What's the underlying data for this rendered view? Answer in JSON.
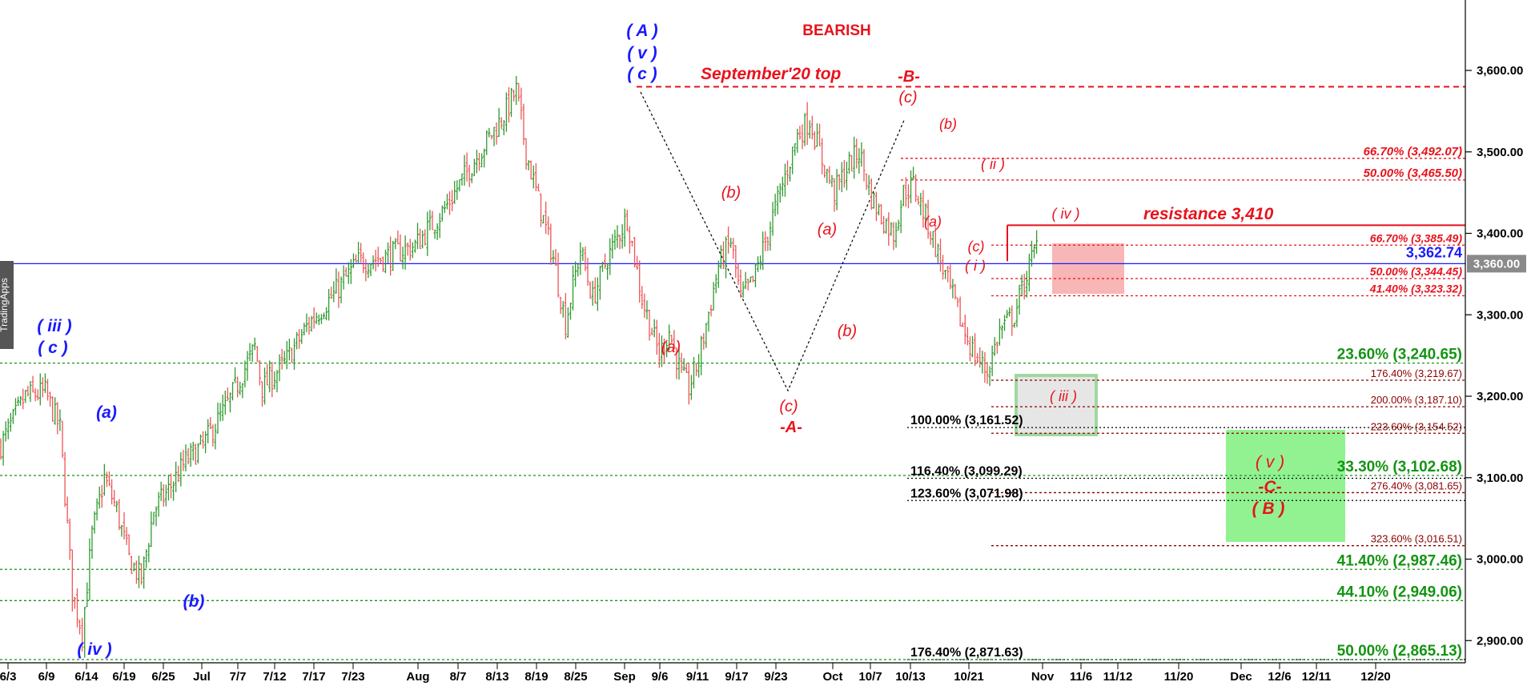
{
  "watermark": "TradingApps",
  "chart_data": {
    "type": "candlestick",
    "title": "BEARISH",
    "ylim": [
      2860,
      3700
    ],
    "y_ticks": [
      "3,600.00",
      "3,500.00",
      "3,400.00",
      "3,300.00",
      "3,200.00",
      "3,100.00",
      "3,000.00",
      "2,900.00"
    ],
    "y_tick_values": [
      3600,
      3500,
      3400,
      3300,
      3200,
      3100,
      3000,
      2900
    ],
    "x_ticks": [
      "6/3",
      "6/9",
      "6/14",
      "6/19",
      "6/25",
      "Jul",
      "7/7",
      "7/12",
      "7/17",
      "7/23",
      "Aug",
      "8/7",
      "8/13",
      "8/19",
      "8/25",
      "Sep",
      "9/6",
      "9/11",
      "9/17",
      "9/23",
      "Oct",
      "10/7",
      "10/13",
      "10/21",
      "Nov",
      "11/6",
      "11/12",
      "11/20",
      "Dec",
      "12/6",
      "12/11",
      "12/20"
    ],
    "current_price": {
      "value": 3362.74,
      "label": "3,362.74",
      "axis_label": "3,360.00",
      "color": "#1a1aff"
    },
    "price_path": [
      [
        0,
        3140
      ],
      [
        10,
        3200
      ],
      [
        18,
        3205
      ],
      [
        24,
        3160
      ],
      [
        29,
        2960
      ],
      [
        33,
        2910
      ],
      [
        37,
        3030
      ],
      [
        42,
        3100
      ],
      [
        47,
        3060
      ],
      [
        52,
        3000
      ],
      [
        57,
        2975
      ],
      [
        62,
        3060
      ],
      [
        67,
        3080
      ],
      [
        75,
        3120
      ],
      [
        82,
        3140
      ],
      [
        92,
        3190
      ],
      [
        103,
        3260
      ],
      [
        106,
        3210
      ],
      [
        115,
        3240
      ],
      [
        125,
        3290
      ],
      [
        135,
        3325
      ],
      [
        145,
        3365
      ],
      [
        155,
        3370
      ],
      [
        168,
        3385
      ],
      [
        180,
        3430
      ],
      [
        192,
        3490
      ],
      [
        203,
        3540
      ],
      [
        209,
        3575
      ],
      [
        213,
        3500
      ],
      [
        218,
        3440
      ],
      [
        224,
        3370
      ],
      [
        229,
        3290
      ],
      [
        235,
        3380
      ],
      [
        240,
        3320
      ],
      [
        246,
        3370
      ],
      [
        254,
        3420
      ],
      [
        260,
        3320
      ],
      [
        267,
        3250
      ],
      [
        271,
        3280
      ],
      [
        276,
        3225
      ],
      [
        279,
        3210
      ],
      [
        283,
        3245
      ],
      [
        291,
        3360
      ],
      [
        296,
        3390
      ],
      [
        300,
        3320
      ],
      [
        305,
        3340
      ],
      [
        311,
        3400
      ],
      [
        317,
        3460
      ],
      [
        323,
        3520
      ],
      [
        328,
        3540
      ],
      [
        333,
        3490
      ],
      [
        338,
        3450
      ],
      [
        343,
        3480
      ],
      [
        348,
        3500
      ],
      [
        353,
        3445
      ],
      [
        357,
        3420
      ],
      [
        362,
        3400
      ],
      [
        366,
        3450
      ],
      [
        370,
        3460
      ],
      [
        375,
        3420
      ],
      [
        380,
        3375
      ],
      [
        385,
        3330
      ],
      [
        390,
        3285
      ],
      [
        395,
        3250
      ],
      [
        400,
        3230
      ],
      [
        405,
        3280
      ],
      [
        411,
        3300
      ],
      [
        416,
        3350
      ],
      [
        420,
        3385
      ]
    ],
    "fibonacci_levels": [
      {
        "label": "66.70% (3,492.07)",
        "value": 3492.07,
        "style": "red"
      },
      {
        "label": "50.00% (3,465.50)",
        "value": 3465.5,
        "style": "red"
      },
      {
        "label": "66.70% (3,385.49)",
        "value": 3385.49,
        "style": "red-small"
      },
      {
        "label": "50.00% (3,344.45)",
        "value": 3344.45,
        "style": "red-small"
      },
      {
        "label": "41.40% (3,323.32)",
        "value": 3323.32,
        "style": "red-small"
      },
      {
        "label": "23.60% (3,240.65)",
        "value": 3240.65,
        "style": "green"
      },
      {
        "label": "176.40% (3,219.67)",
        "value": 3219.67,
        "style": "dark"
      },
      {
        "label": "200.00% (3,187.10)",
        "value": 3187.1,
        "style": "dark"
      },
      {
        "label": "100.00% (3,161.52)",
        "value": 3161.52,
        "style": "black"
      },
      {
        "label": "223.60% (3,154.52)",
        "value": 3154.52,
        "style": "dark"
      },
      {
        "label": "33.30% (3,102.68)",
        "value": 3102.68,
        "style": "green"
      },
      {
        "label": "116.40% (3,099.29)",
        "value": 3099.29,
        "style": "black"
      },
      {
        "label": "276.40% (3,081.65)",
        "value": 3081.65,
        "style": "dark"
      },
      {
        "label": "123.60% (3,071.98)",
        "value": 3071.98,
        "style": "black"
      },
      {
        "label": "323.60% (3,016.51)",
        "value": 3016.51,
        "style": "dark"
      },
      {
        "label": "41.40% (2,987.46)",
        "value": 2987.46,
        "style": "green"
      },
      {
        "label": "44.10% (2,949.06)",
        "value": 2949.06,
        "style": "green"
      },
      {
        "label": "176.40% (2,871.63)",
        "value": 2871.63,
        "style": "black"
      },
      {
        "label": "50.00% (2,865.13)",
        "value": 2865.13,
        "style": "green"
      }
    ],
    "annotations": {
      "september_top": {
        "label": "September'20 top",
        "value": 3580
      },
      "resistance": {
        "label": "resistance 3,410",
        "value": 3410
      }
    },
    "wave_labels_blue": [
      "( A )",
      "( v )",
      "( c )",
      "( iii )",
      "( c )",
      "(a)",
      "(b)",
      "( iv )"
    ],
    "wave_labels_red": [
      "(a)",
      "(b)",
      "(c)",
      "-A-",
      "(a)",
      "(b)",
      "-B-",
      "(c)",
      "(b)",
      "(a)",
      "( ii )",
      "(c)",
      "( i )",
      "( iv )",
      "( iii )",
      "( v )",
      "-C-",
      "( B )"
    ]
  }
}
